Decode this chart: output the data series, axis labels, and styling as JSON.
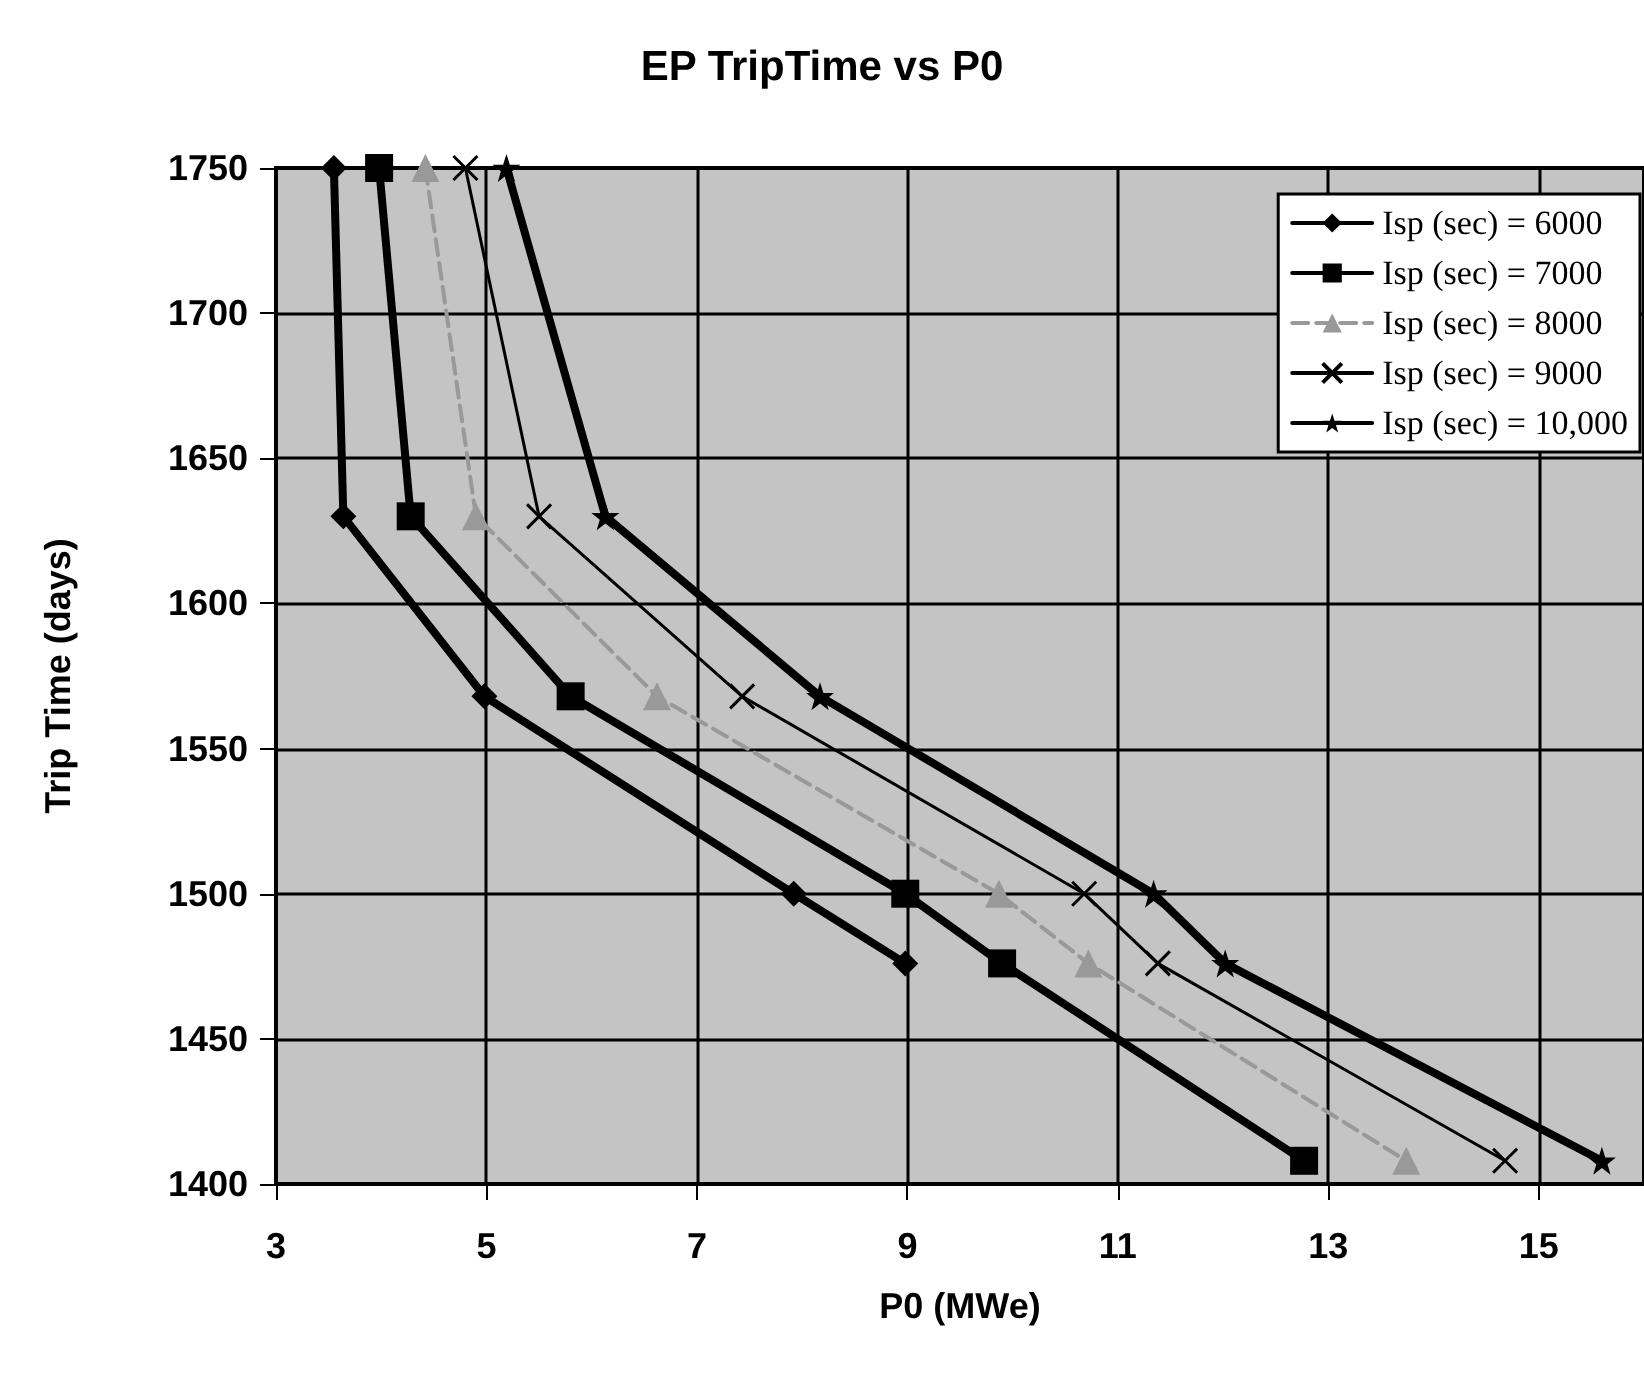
{
  "chart_data": {
    "type": "line",
    "title": "EP TripTime vs P0",
    "xlabel": "P0 (MWe)",
    "ylabel": "Trip Time (days)",
    "xlim": [
      3,
      16
    ],
    "xticks": [
      3,
      5,
      7,
      9,
      11,
      13,
      15
    ],
    "ylim": [
      1400,
      1750
    ],
    "yticks": [
      1400,
      1450,
      1500,
      1550,
      1600,
      1650,
      1700,
      1750
    ],
    "grid": true,
    "legend": "top right",
    "series": [
      {
        "name": "Isp (sec) = 6000",
        "color": "#000000",
        "marker": "diamond",
        "x": [
          3.55,
          3.64,
          4.98,
          7.92,
          8.98
        ],
        "values": [
          1750,
          1630,
          1568,
          1500,
          1476
        ]
      },
      {
        "name": "Isp (sec) = 7000",
        "color": "#000000",
        "marker": "square",
        "x": [
          3.98,
          4.28,
          5.8,
          8.98,
          9.9,
          12.77
        ],
        "values": [
          1750,
          1630,
          1568,
          1500,
          1476,
          1408
        ]
      },
      {
        "name": "Isp (sec) = 8000",
        "color": "#999999",
        "marker": "triangle",
        "line_style": "dashed",
        "x": [
          4.42,
          4.9,
          6.62,
          9.87,
          10.72,
          13.74
        ],
        "values": [
          1750,
          1630,
          1568,
          1500,
          1476,
          1408
        ]
      },
      {
        "name": "Isp (sec) = 9000",
        "color": "#000000",
        "marker": "cross",
        "x": [
          4.8,
          5.5,
          7.43,
          10.68,
          11.38,
          14.68
        ],
        "values": [
          1750,
          1630,
          1568,
          1500,
          1476,
          1408
        ]
      },
      {
        "name": "Isp (sec) = 10,000",
        "color": "#000000",
        "marker": "star",
        "x": [
          5.19,
          6.13,
          8.17,
          11.34,
          12.02,
          15.6
        ],
        "values": [
          1750,
          1630,
          1568,
          1500,
          1476,
          1408
        ]
      }
    ]
  }
}
